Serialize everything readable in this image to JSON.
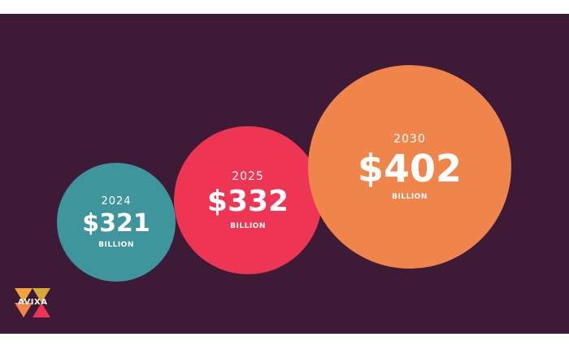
{
  "chart_data": {
    "type": "bubble",
    "unit": "BILLION",
    "series": [
      {
        "year": "2024",
        "label": "$321",
        "value": 321,
        "unit": "BILLION",
        "color": "#3f959c"
      },
      {
        "year": "2025",
        "label": "$332",
        "value": 332,
        "unit": "BILLION",
        "color": "#ef3554"
      },
      {
        "year": "2030",
        "label": "$402",
        "value": 402,
        "unit": "BILLION",
        "color": "#f0854c"
      }
    ]
  },
  "logo": {
    "text": "AVIXA",
    "name": "avixa-logo"
  },
  "colors": {
    "background": "#3d1a35",
    "text": "#ffffff"
  }
}
